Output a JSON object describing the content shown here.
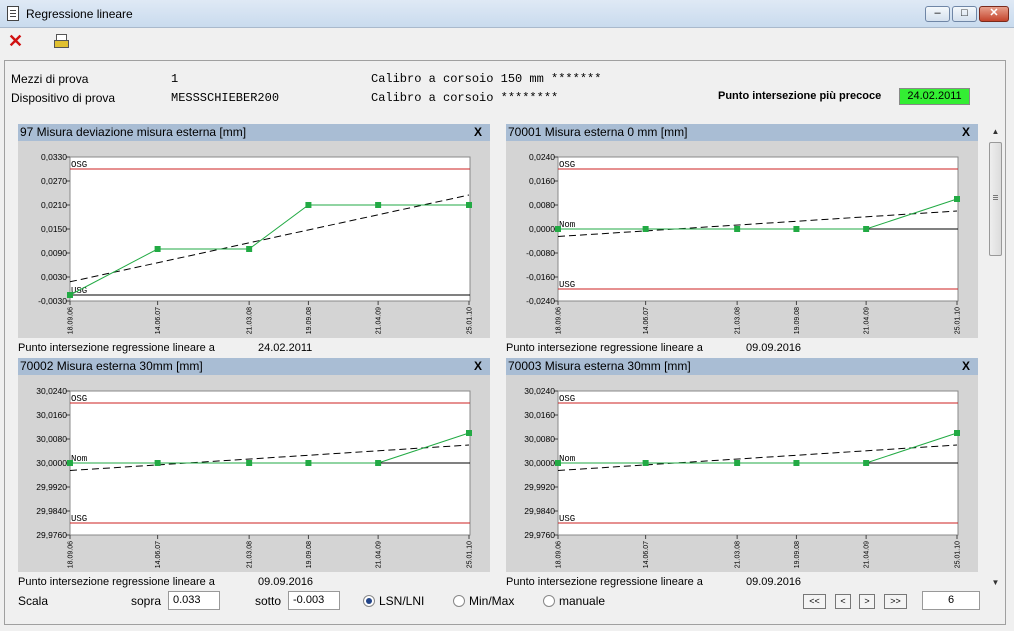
{
  "window": {
    "title": "Regressione lineare"
  },
  "header": {
    "mezzi_label": "Mezzi di prova",
    "mezzi_value": "1",
    "mezzi_desc": "Calibro a corsoio 150 mm *******",
    "dispositivo_label": "Dispositivo di prova",
    "dispositivo_value": "MESSSCHIEBER200",
    "dispositivo_desc": "Calibro a corsoio ********",
    "intersezione_label": "Punto intersezione più precoce",
    "intersezione_value": "24.02.2011"
  },
  "panels": [
    {
      "title": "97 Misura deviazione misura esterna [mm]",
      "close": "X",
      "footer_label": "Punto intersezione regressione lineare a",
      "footer_value": "24.02.2011"
    },
    {
      "title": "70001 Misura esterna 0 mm [mm]",
      "close": "X",
      "footer_label": "Punto intersezione regressione lineare a",
      "footer_value": "09.09.2016"
    },
    {
      "title": "70002 Misura esterna 30mm [mm]",
      "close": "X",
      "footer_label": "Punto intersezione regressione lineare a",
      "footer_value": "09.09.2016"
    },
    {
      "title": "70003 Misura esterna 30mm [mm]",
      "close": "X",
      "footer_label": "Punto intersezione regressione lineare a",
      "footer_value": "09.09.2016"
    }
  ],
  "chart_data": [
    {
      "type": "line",
      "categories": [
        "18.09.06",
        "14.06.07",
        "21.03.08",
        "19.09.08",
        "21.04.09",
        "25.01.10"
      ],
      "yticks": [
        "0,0330",
        "0,0270",
        "0,0210",
        "0,0150",
        "0,0090",
        "0,0030",
        "-0,0030"
      ],
      "ylim": [
        -0.003,
        0.033
      ],
      "series": [
        {
          "values": [
            -0.0015,
            0.01,
            0.01,
            0.021,
            0.021,
            0.021
          ]
        }
      ],
      "trend": [
        0.0018,
        0.0235
      ],
      "limits": [
        {
          "label": "OSG",
          "value": 0.03,
          "color": "#cc2222"
        },
        {
          "label": "USG",
          "value": -0.0015,
          "color": "#000000"
        }
      ]
    },
    {
      "type": "line",
      "categories": [
        "18.09.06",
        "14.06.07",
        "21.03.08",
        "19.09.08",
        "21.04.09",
        "25.01.10"
      ],
      "yticks": [
        "0,0240",
        "0,0160",
        "0,0080",
        "0,0000",
        "-0,0080",
        "-0,0160",
        "-0,0240"
      ],
      "ylim": [
        -0.024,
        0.024
      ],
      "series": [
        {
          "values": [
            0.0,
            0.0,
            0.0,
            0.0,
            0.0,
            0.01
          ]
        }
      ],
      "trend": [
        -0.0025,
        0.006
      ],
      "limits": [
        {
          "label": "OSG",
          "value": 0.02,
          "color": "#cc2222"
        },
        {
          "label": "Nom",
          "value": 0.0,
          "color": "#000000"
        },
        {
          "label": "USG",
          "value": -0.02,
          "color": "#cc2222"
        }
      ]
    },
    {
      "type": "line",
      "categories": [
        "18.09.06",
        "14.06.07",
        "21.03.08",
        "19.09.08",
        "21.04.09",
        "25.01.10"
      ],
      "yticks": [
        "30,0240",
        "30,0160",
        "30,0080",
        "30,0000",
        "29,9920",
        "29,9840",
        "29,9760"
      ],
      "ylim": [
        29.976,
        30.024
      ],
      "series": [
        {
          "values": [
            30.0,
            30.0,
            30.0,
            30.0,
            30.0,
            30.01
          ]
        }
      ],
      "trend": [
        29.9975,
        30.006
      ],
      "limits": [
        {
          "label": "OSG",
          "value": 30.02,
          "color": "#cc2222"
        },
        {
          "label": "Nom",
          "value": 30.0,
          "color": "#000000"
        },
        {
          "label": "USG",
          "value": 29.98,
          "color": "#cc2222"
        }
      ]
    },
    {
      "type": "line",
      "categories": [
        "18.09.06",
        "14.06.07",
        "21.03.08",
        "19.09.08",
        "21.04.09",
        "25.01.10"
      ],
      "yticks": [
        "30,0240",
        "30,0160",
        "30,0080",
        "30,0000",
        "29,9920",
        "29,9840",
        "29,9760"
      ],
      "ylim": [
        29.976,
        30.024
      ],
      "series": [
        {
          "values": [
            30.0,
            30.0,
            30.0,
            30.0,
            30.0,
            30.01
          ]
        }
      ],
      "trend": [
        29.9975,
        30.006
      ],
      "limits": [
        {
          "label": "OSG",
          "value": 30.02,
          "color": "#cc2222"
        },
        {
          "label": "Nom",
          "value": 30.0,
          "color": "#000000"
        },
        {
          "label": "USG",
          "value": 29.98,
          "color": "#cc2222"
        }
      ]
    }
  ],
  "controls": {
    "scala_label": "Scala",
    "sopra_label": "sopra",
    "sopra_value": "0.033",
    "sotto_label": "sotto",
    "sotto_value": "-0.003",
    "radio_lsn": "LSN/LNI",
    "radio_minmax": "Min/Max",
    "radio_manuale": "manuale",
    "selected_mode": "LSN/LNI",
    "nav_first": "<<",
    "nav_prev": "<",
    "nav_next": ">",
    "nav_last": ">>",
    "count": "6"
  },
  "colors": {
    "title_bar": "#a9bdd4",
    "plot_bg": "#ffffff",
    "series": "#22aa44",
    "green_badge": "#33ee33"
  }
}
